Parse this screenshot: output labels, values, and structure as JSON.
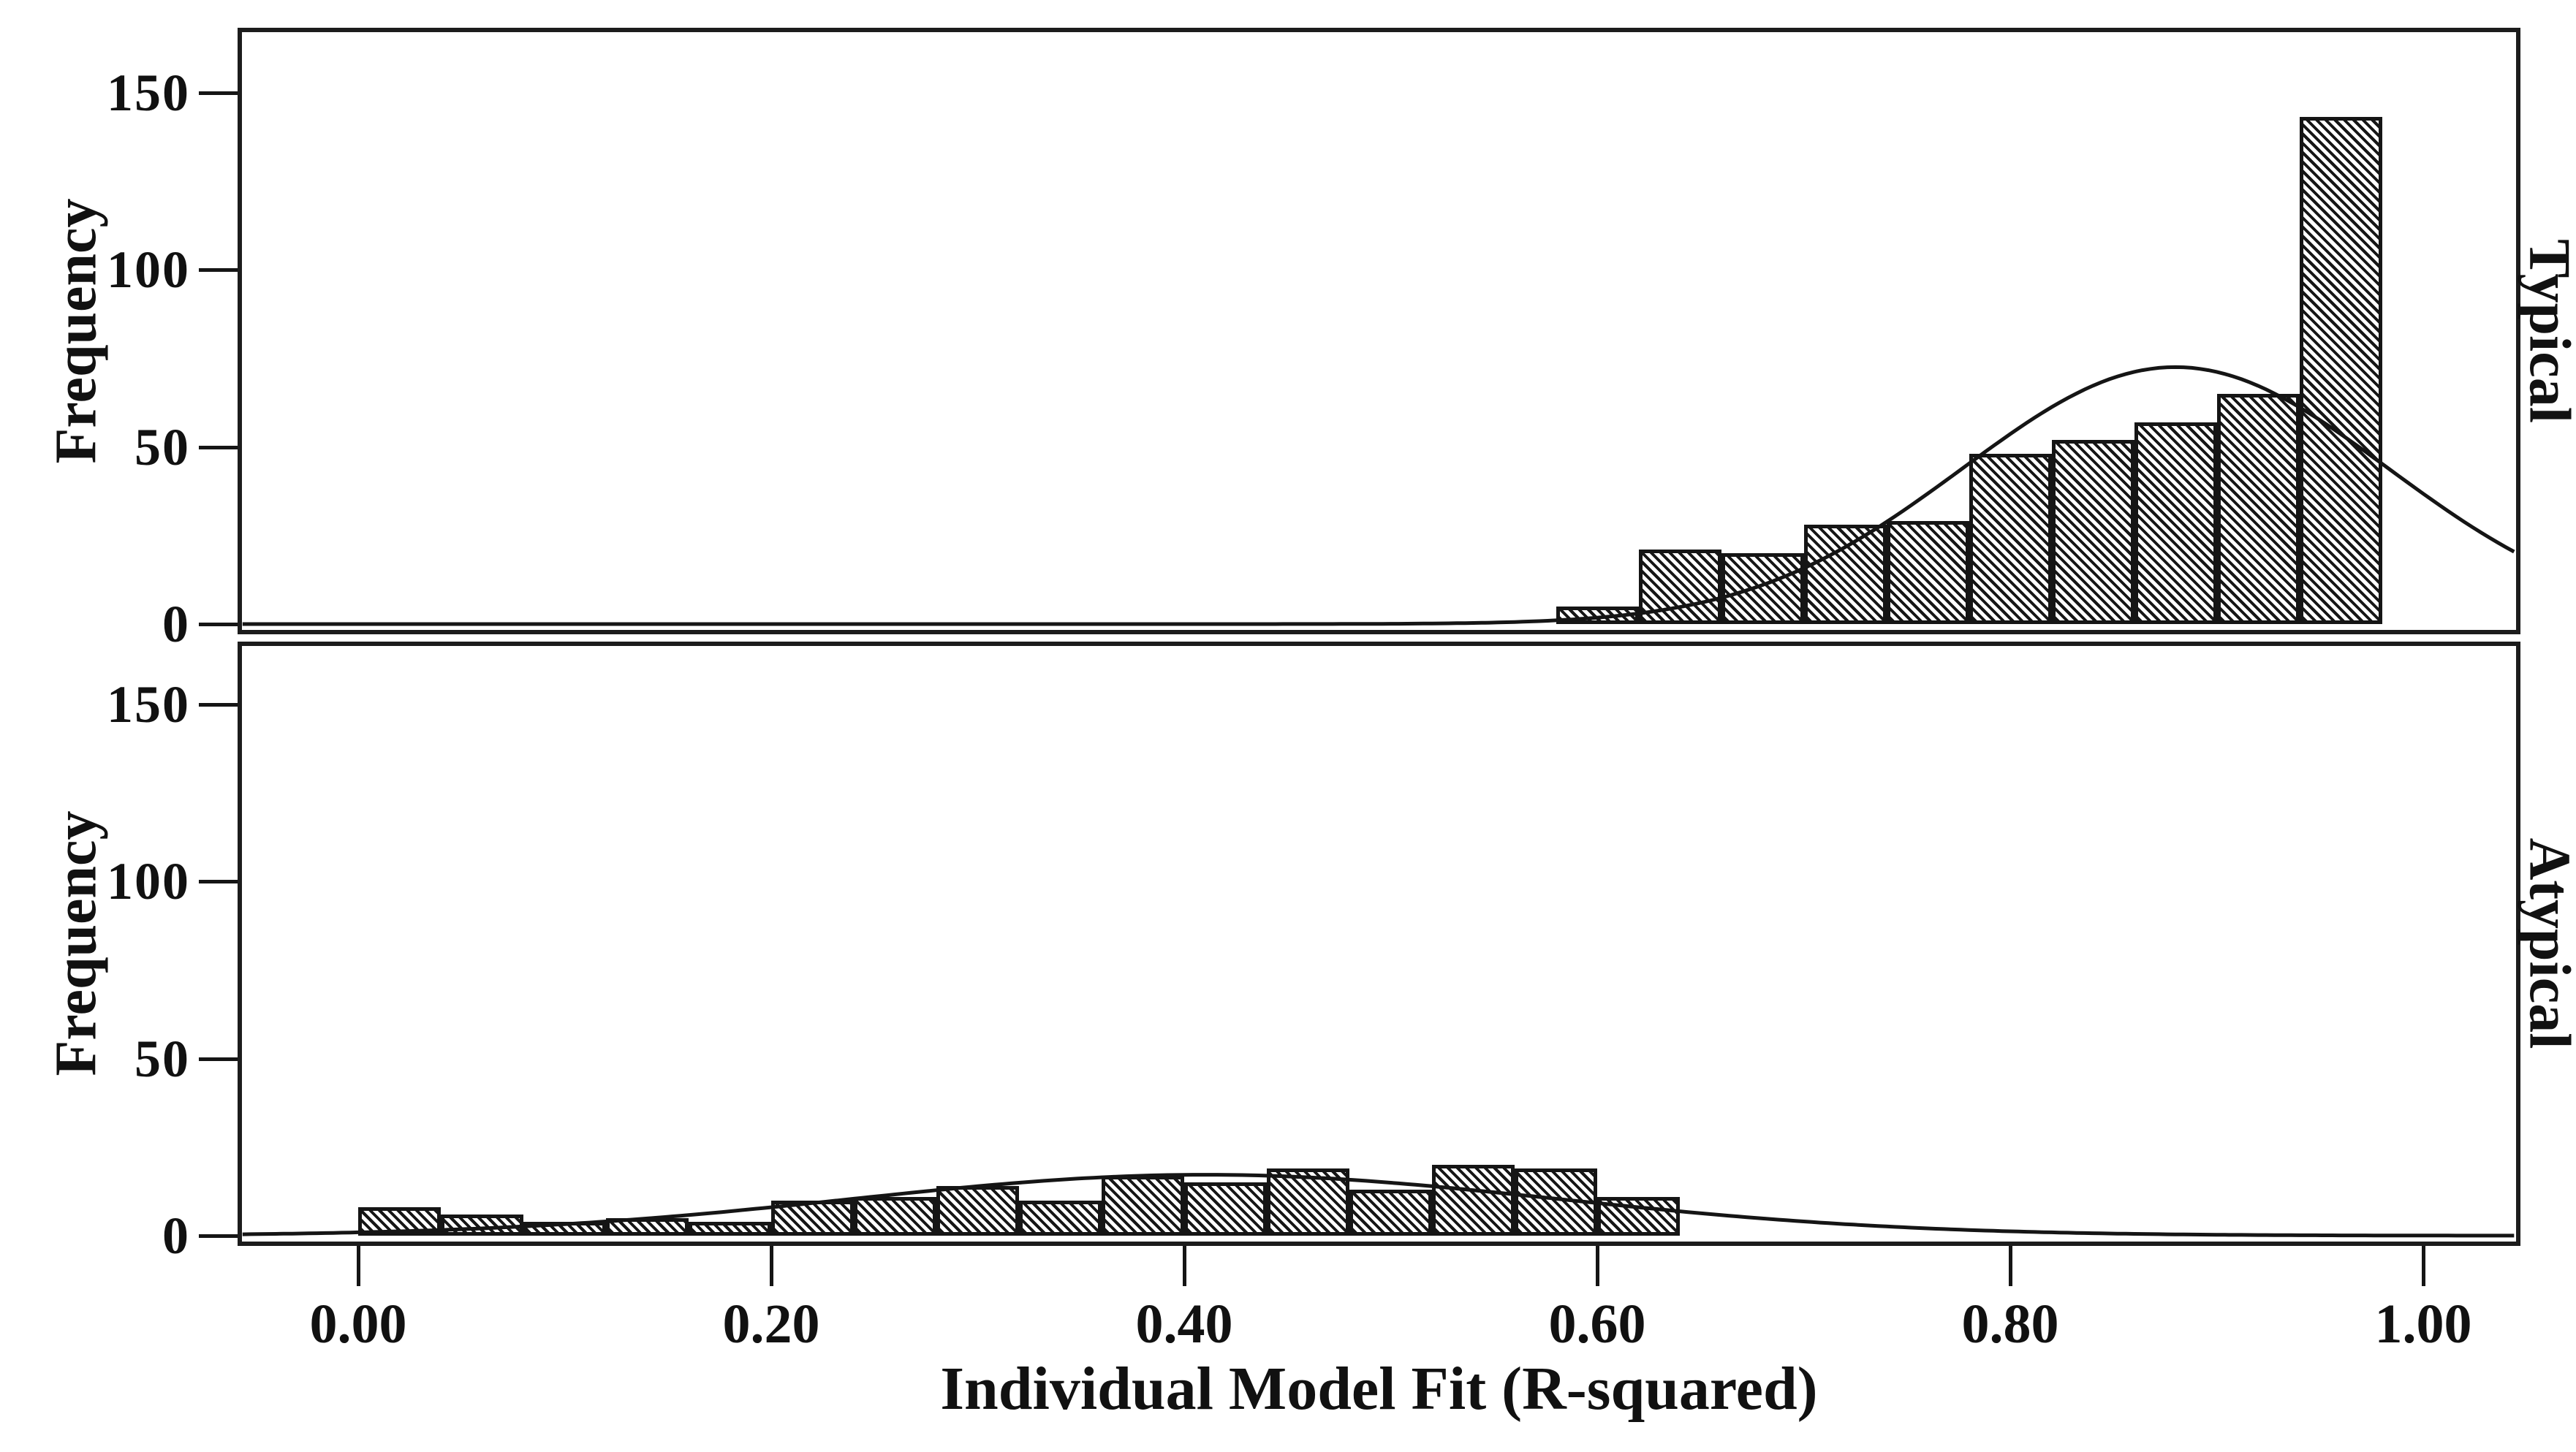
{
  "figure": {
    "xlabel": "Individual Model Fit (R-squared)",
    "ylabel": "Frequency",
    "background": "#ffffff",
    "ink_color": "#151515",
    "hatch_pattern": "diagonal-backslash"
  },
  "chart_data": [
    {
      "type": "bar",
      "subtype": "histogram",
      "panel": "Typical",
      "bin_start": 0.58,
      "bin_width": 0.04,
      "bin_edges": [
        0.58,
        0.62,
        0.66,
        0.7,
        0.74,
        0.78,
        0.82,
        0.86,
        0.9,
        0.94,
        0.98
      ],
      "frequencies": [
        5,
        21,
        20,
        28,
        29,
        48,
        52,
        57,
        65,
        143
      ],
      "normal_curve": {
        "mu": 0.88,
        "sigma": 0.103,
        "peak": 72.5
      },
      "xlabel": "Individual Model Fit (R-squared)",
      "ylabel": "Frequency",
      "xlim": [
        -0.056,
        1.045
      ],
      "ylim": [
        0,
        169
      ],
      "yticks": [
        0,
        50,
        100,
        150
      ],
      "xtick_values": [
        0.0,
        0.2,
        0.4,
        0.6,
        0.8,
        1.0
      ],
      "xtick_labels": [
        "0.00",
        "0.20",
        "0.40",
        "0.60",
        "0.80",
        "1.00"
      ],
      "grid": "off",
      "legend": "none"
    },
    {
      "type": "bar",
      "subtype": "histogram",
      "panel": "Atypical",
      "bin_start": 0.0,
      "bin_width": 0.04,
      "bin_edges": [
        0.0,
        0.04,
        0.08,
        0.12,
        0.16,
        0.2,
        0.24,
        0.28,
        0.32,
        0.36,
        0.4,
        0.44,
        0.48,
        0.52,
        0.56,
        0.6,
        0.64
      ],
      "frequencies": [
        8,
        6,
        4,
        5,
        4,
        10,
        11,
        14,
        10,
        17,
        15,
        19,
        13,
        20,
        19,
        11
      ],
      "normal_curve": {
        "mu": 0.41,
        "sigma": 0.17,
        "peak": 17.2
      },
      "xlabel": "Individual Model Fit (R-squared)",
      "ylabel": "Frequency",
      "xlim": [
        -0.056,
        1.045
      ],
      "ylim": [
        0,
        169
      ],
      "yticks": [
        0,
        50,
        100,
        150
      ],
      "xtick_values": [
        0.0,
        0.2,
        0.4,
        0.6,
        0.8,
        1.0
      ],
      "xtick_labels": [
        "0.00",
        "0.20",
        "0.40",
        "0.60",
        "0.80",
        "1.00"
      ],
      "grid": "off",
      "legend": "none"
    }
  ]
}
